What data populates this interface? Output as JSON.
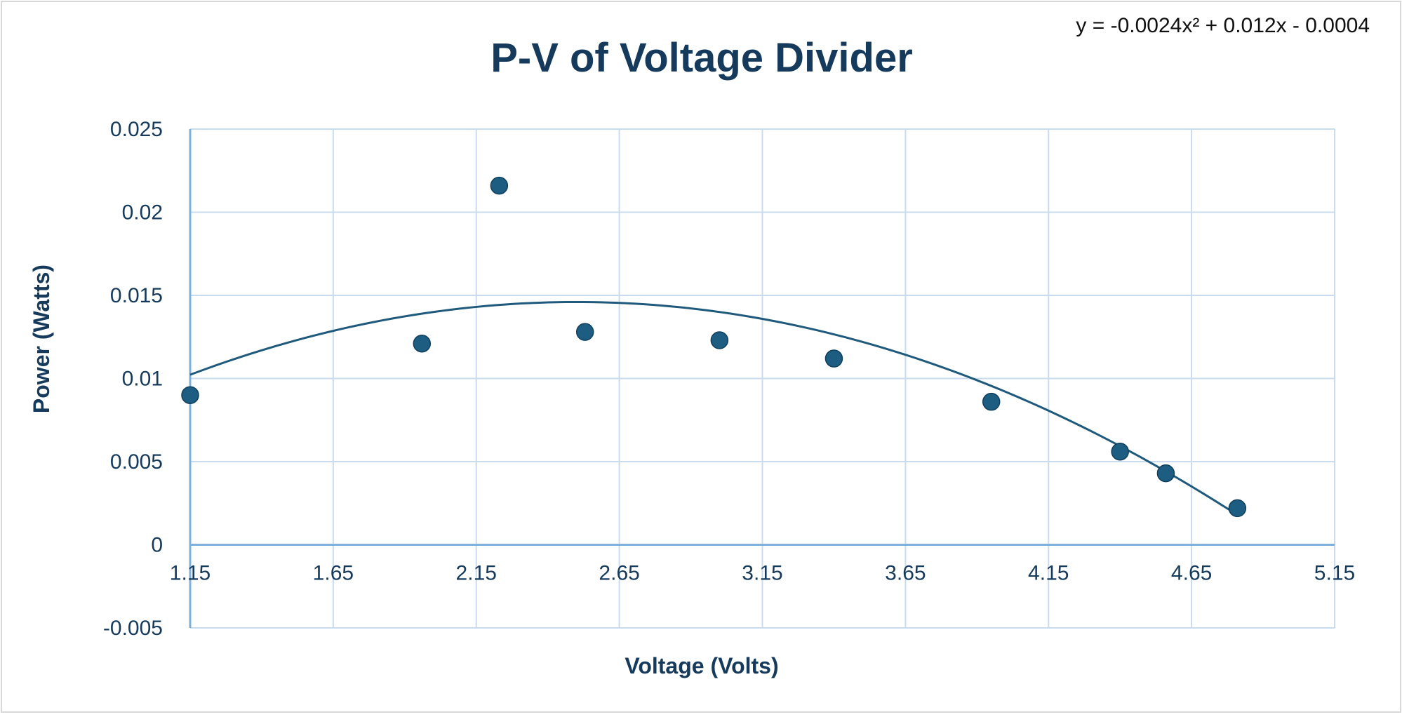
{
  "chart_data": {
    "type": "scatter",
    "title": "P-V of Voltage Divider",
    "xlabel": "Voltage (Volts)",
    "ylabel": "Power (Watts)",
    "xlim": [
      1.15,
      5.15
    ],
    "ylim": [
      -0.005,
      0.025
    ],
    "x_ticks": [
      "1.15",
      "1.65",
      "2.15",
      "2.65",
      "3.15",
      "3.65",
      "4.15",
      "4.65",
      "5.15"
    ],
    "y_ticks": [
      "-0.005",
      "0",
      "0.005",
      "0.01",
      "0.015",
      "0.02",
      "0.025"
    ],
    "grid": true,
    "legend": "none",
    "series": [
      {
        "points": [
          {
            "x": 1.15,
            "y": 0.009
          },
          {
            "x": 1.96,
            "y": 0.0121
          },
          {
            "x": 2.23,
            "y": 0.0216
          },
          {
            "x": 2.53,
            "y": 0.0128
          },
          {
            "x": 3.0,
            "y": 0.0123
          },
          {
            "x": 3.4,
            "y": 0.0112
          },
          {
            "x": 3.95,
            "y": 0.0086
          },
          {
            "x": 4.4,
            "y": 0.0056
          },
          {
            "x": 4.56,
            "y": 0.0043
          },
          {
            "x": 4.81,
            "y": 0.0022
          }
        ]
      }
    ],
    "trendline": {
      "type": "polynomial",
      "order": 2,
      "coefficients": [
        -0.0024,
        0.012,
        -0.0004
      ],
      "x_range": [
        1.15,
        4.81
      ],
      "equation": "y = -0.0024x² + 0.012x - 0.0004"
    },
    "colors": {
      "point": "#1d5d82",
      "trendline": "#1f5a7d",
      "grid": "#c9dcef",
      "axis": "#7fb0dc",
      "title": "#163a5c"
    }
  }
}
